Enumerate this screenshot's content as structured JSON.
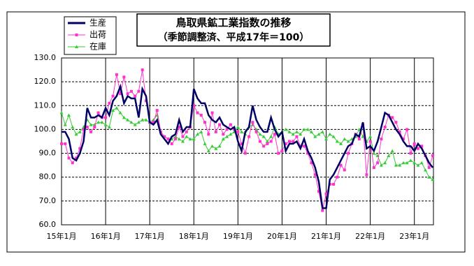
{
  "chart_data": {
    "type": "line",
    "title": "鳥取県鉱工業指数の推移",
    "subtitle": "（季節調整済、平成17年＝100）",
    "categories": [
      "15年1月",
      null,
      null,
      null,
      null,
      null,
      null,
      null,
      null,
      null,
      null,
      null,
      "16年1月",
      null,
      null,
      null,
      null,
      null,
      null,
      null,
      null,
      null,
      null,
      null,
      "17年1月",
      null,
      null,
      null,
      null,
      null,
      null,
      null,
      null,
      null,
      null,
      null,
      "18年1月",
      null,
      null,
      null,
      null,
      null,
      null,
      null,
      null,
      null,
      null,
      null,
      "19年1月",
      null,
      null,
      null,
      null,
      null,
      null,
      null,
      null,
      null,
      null,
      null,
      "20年1月",
      null,
      null,
      null,
      null,
      null,
      null,
      null,
      null,
      null,
      null,
      null,
      "21年1月",
      null,
      null,
      null,
      null,
      null,
      null,
      null,
      null,
      null,
      null,
      null,
      "22年1月",
      null,
      null,
      null,
      null,
      null,
      null,
      null,
      null,
      null,
      null,
      null,
      "23年1月",
      null,
      null,
      null,
      null,
      null
    ],
    "series": [
      {
        "name": "生産",
        "color": "#000066",
        "marker": "none",
        "values": [
          99,
          99,
          96,
          88,
          87,
          90,
          95,
          109,
          105,
          105,
          106,
          105,
          109,
          106,
          112,
          114,
          118,
          111,
          114,
          113,
          113,
          105,
          117,
          114,
          103,
          102,
          104,
          98,
          96,
          94,
          97,
          98,
          104,
          99,
          101,
          101,
          117,
          113,
          111,
          111,
          106,
          104,
          103,
          105,
          102,
          101,
          100,
          101,
          95,
          91,
          99,
          101,
          110,
          104,
          101,
          99,
          99,
          105,
          100,
          97,
          99,
          91,
          94,
          94,
          95,
          92,
          96,
          91,
          88,
          84,
          78,
          67,
          67,
          79,
          81,
          84,
          87,
          90,
          93,
          94,
          98,
          97,
          103,
          92,
          93,
          91,
          95,
          101,
          107,
          106,
          103,
          100,
          98,
          95,
          93,
          93,
          91,
          94,
          92,
          89,
          86,
          84
        ]
      },
      {
        "name": "出荷",
        "color": "#ff33cc",
        "marker": "square",
        "values": [
          94,
          94,
          88,
          86,
          88,
          92,
          100,
          101,
          99,
          101,
          107,
          105,
          105,
          111,
          114,
          123,
          115,
          122,
          115,
          116,
          114,
          116,
          125,
          112,
          103,
          103,
          108,
          99,
          97,
          96,
          94,
          96,
          101,
          97,
          99,
          101,
          110,
          107,
          106,
          103,
          98,
          107,
          99,
          102,
          98,
          100,
          102,
          100,
          99,
          94,
          90,
          97,
          103,
          99,
          95,
          93,
          94,
          95,
          98,
          90,
          91,
          94,
          95,
          95,
          97,
          93,
          93,
          90,
          86,
          81,
          74,
          66,
          73,
          77,
          77,
          80,
          85,
          83,
          90,
          94,
          98,
          96,
          102,
          81,
          95,
          84,
          86,
          96,
          101,
          106,
          105,
          103,
          99,
          96,
          100,
          90,
          94,
          92,
          93,
          89,
          84,
          89
        ]
      },
      {
        "name": "在庫",
        "color": "#33cc33",
        "marker": "triangle",
        "values": [
          107,
          102,
          106,
          101,
          98,
          99,
          101,
          104,
          102,
          102,
          103,
          103,
          102,
          101,
          108,
          109,
          107,
          105,
          104,
          103,
          102,
          103,
          104,
          104,
          103,
          104,
          106,
          99,
          97,
          96,
          96,
          97,
          96,
          95,
          97,
          96,
          96,
          98,
          99,
          94,
          91,
          93,
          92,
          93,
          96,
          97,
          98,
          99,
          101,
          99,
          98,
          101,
          102,
          100,
          98,
          97,
          95,
          97,
          101,
          98,
          99,
          100,
          99,
          98,
          99,
          98,
          100,
          100,
          99,
          97,
          98,
          99,
          96,
          98,
          97,
          95,
          94,
          96,
          95,
          96,
          97,
          100,
          97,
          95,
          97,
          90,
          89,
          85,
          86,
          89,
          91,
          85,
          85,
          86,
          86,
          87,
          86,
          85,
          86,
          83,
          80,
          79
        ]
      }
    ],
    "ylim": [
      60,
      130
    ],
    "yticks": [
      {
        "value": 60,
        "label": "60.0"
      },
      {
        "value": 70,
        "label": "70.0"
      },
      {
        "value": 80,
        "label": "80.0"
      },
      {
        "value": 90,
        "label": "90.0"
      },
      {
        "value": 100,
        "label": "100.0"
      },
      {
        "value": 110,
        "label": "110.0"
      },
      {
        "value": 120,
        "label": "120.0"
      },
      {
        "value": 130,
        "label": "130.0"
      }
    ],
    "grid": true
  }
}
